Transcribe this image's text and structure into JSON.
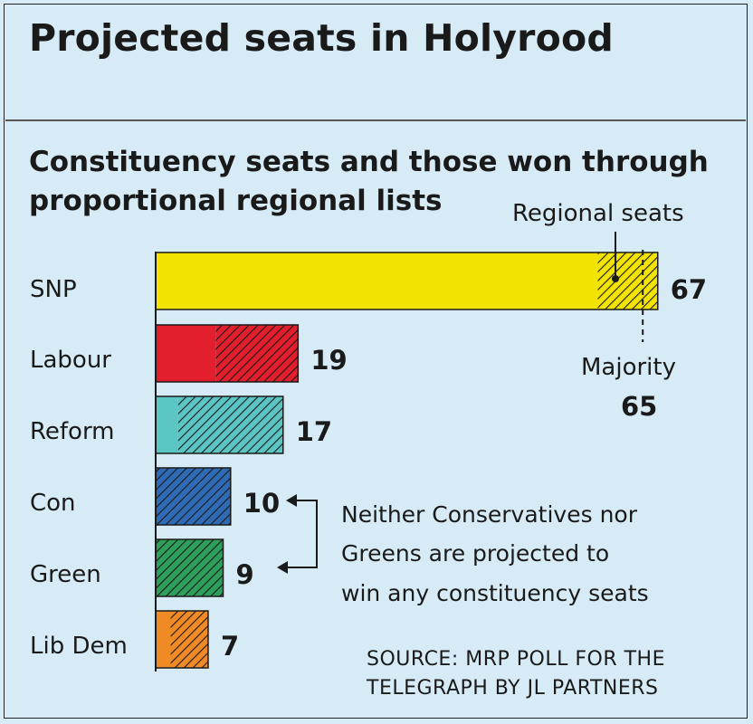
{
  "title": "Projected seats in Holyrood",
  "subtitle": [
    "Constituency seats and those won through",
    "proportional regional lists"
  ],
  "chart_data": {
    "type": "bar",
    "orientation": "horizontal",
    "stacked": true,
    "title": "Projected seats in Holyrood",
    "subtitle": "Constituency seats and those won through proportional regional lists",
    "xlim": [
      0,
      71
    ],
    "categories": [
      "SNP",
      "Labour",
      "Reform",
      "Con",
      "Green",
      "Lib Dem"
    ],
    "colors": [
      "#f2e300",
      "#e31e2d",
      "#5ac5c3",
      "#2f6bb5",
      "#2e9e5b",
      "#f08a24"
    ],
    "series": [
      {
        "name": "Constituency seats",
        "values": [
          59,
          8,
          3,
          0,
          0,
          2
        ]
      },
      {
        "name": "Regional seats",
        "values": [
          8,
          11,
          14,
          10,
          9,
          5
        ]
      }
    ],
    "totals": [
      "67",
      "19",
      "17",
      "10",
      "9",
      "7"
    ],
    "majority": {
      "value": 65,
      "label": "Majority",
      "value_label": "65"
    },
    "annotations": {
      "regional": "Regional seats",
      "note": [
        "Neither Conservatives nor",
        "Greens are projected to",
        "win any constituency seats"
      ]
    },
    "source": [
      "SOURCE: MRP POLL FOR THE",
      "TELEGRAPH BY JL PARTNERS"
    ]
  }
}
